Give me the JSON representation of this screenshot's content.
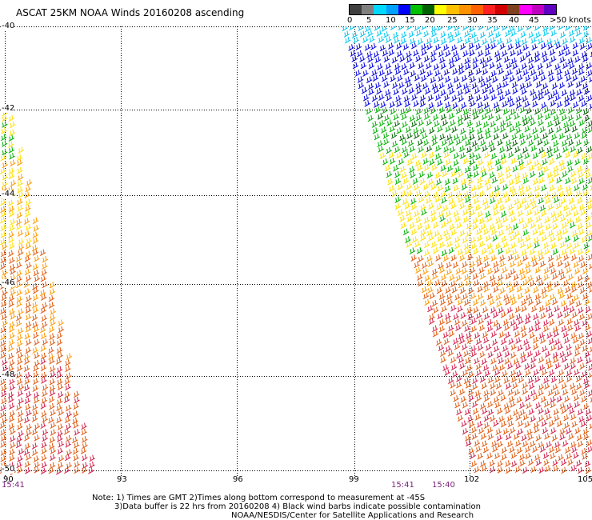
{
  "title": "ASCAT 25KM NOAA Winds 20160208 ascending",
  "legend": {
    "colors": [
      "#3f3f3f",
      "#7f7f7f",
      "#00d8ff",
      "#00a0ff",
      "#0000ff",
      "#00c000",
      "#006000",
      "#ffff00",
      "#ffc000",
      "#ff9000",
      "#ff6000",
      "#ff2020",
      "#d00000",
      "#804020",
      "#ff00ff",
      "#c000c0",
      "#6000c0"
    ],
    "labels": [
      "0",
      "5",
      "10",
      "15",
      "20",
      "25",
      "30",
      "35",
      "40",
      "45",
      ">50 knots"
    ]
  },
  "axes": {
    "lat_labels": [
      "-40",
      "-42",
      "-44",
      "-46",
      "-48",
      "-50"
    ],
    "lon_labels": [
      "90",
      "93",
      "96",
      "99",
      "102",
      "105"
    ]
  },
  "times": [
    "15:41",
    "15:41",
    "15:40"
  ],
  "notes": {
    "line1": "Note: 1) Times are GMT 2)Times along bottom correspond to measurement at -45S",
    "line2": "3)Data buffer is 22 hrs from 20160208 4) Black wind barbs indicate possible contamination",
    "line3": "NOAA/NESDIS/Center for Satellite Applications and Research"
  },
  "wind_bands": {
    "left_swath": [
      "green",
      "yellow",
      "orange",
      "red-orange",
      "orange"
    ],
    "right_swath": [
      "cyan",
      "blue",
      "green",
      "yellow",
      "orange",
      "crimson",
      "red-orange"
    ]
  }
}
